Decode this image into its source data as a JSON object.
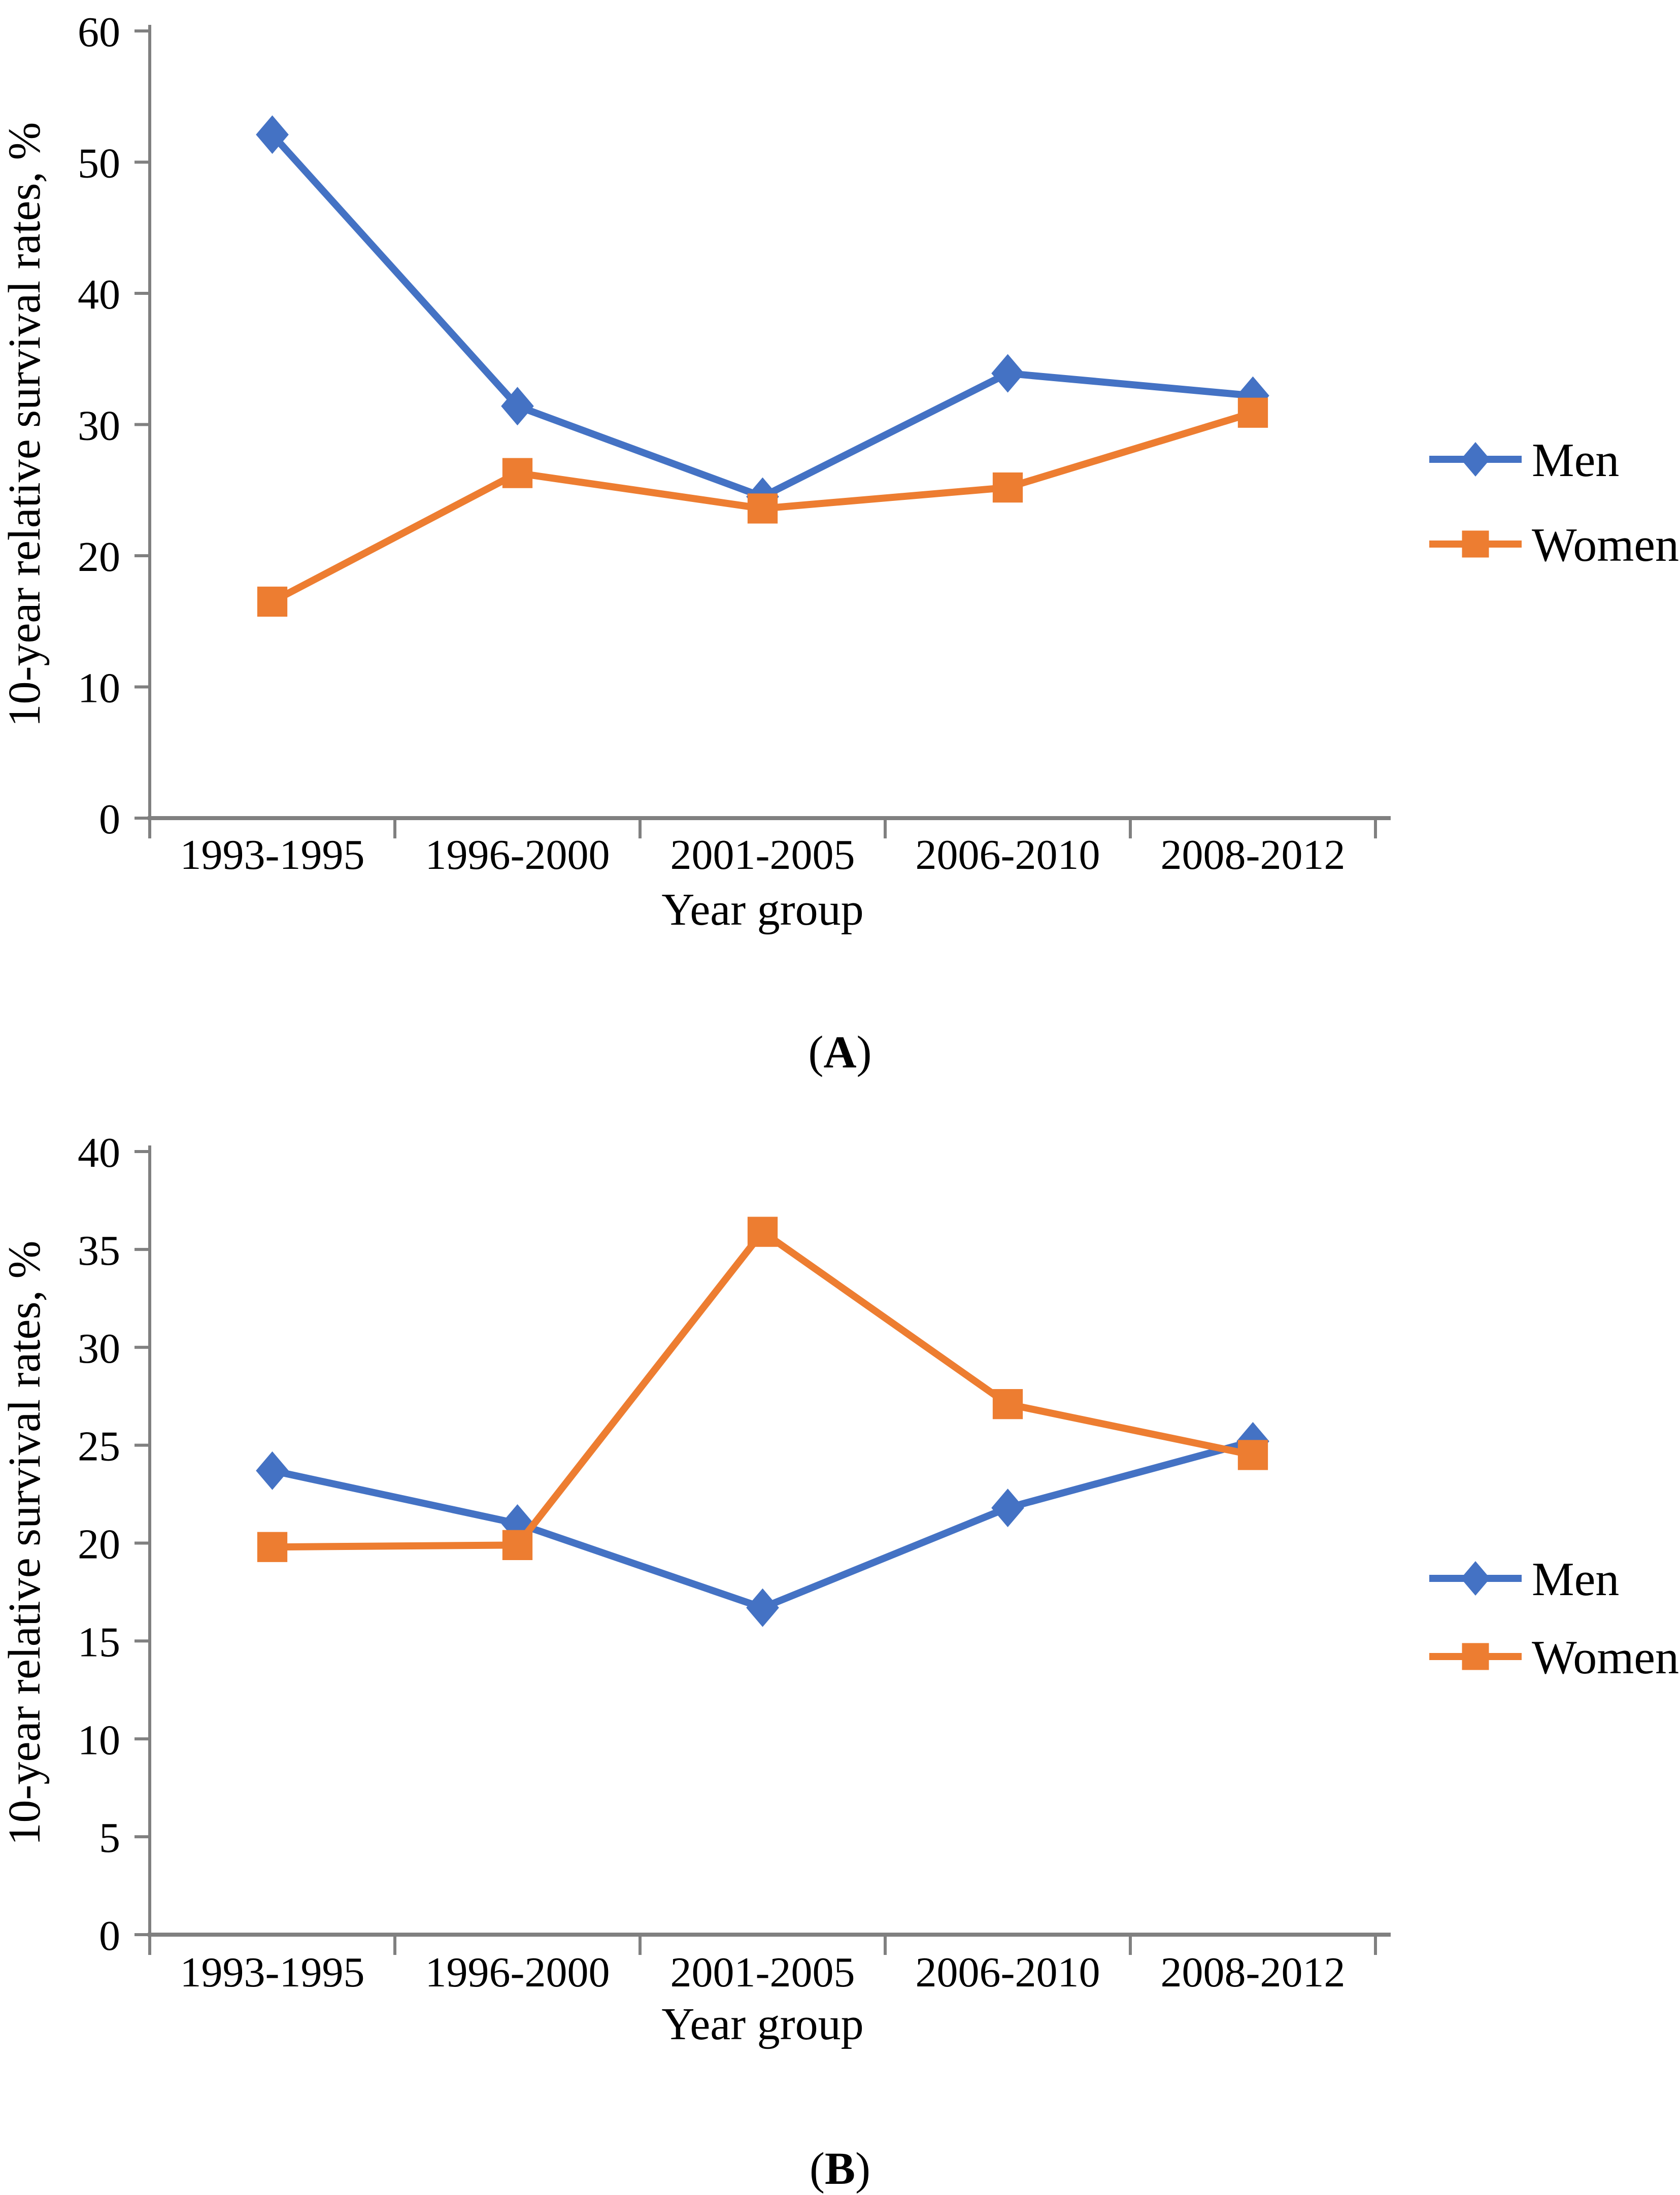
{
  "page": {
    "background": "#ffffff",
    "series_colors": {
      "men": "#4472C4",
      "women": "#ED7D31"
    },
    "axis_color": "#808080",
    "text_color": "#000000"
  },
  "chart_data": [
    {
      "id": "A",
      "type": "line",
      "title": "",
      "xlabel": "Year group",
      "ylabel": "10-year relative survival rates, %",
      "caption": {
        "open": "(",
        "letter": "A",
        "close": ")"
      },
      "categories": [
        "1993-1995",
        "1996-2000",
        "2001-2005",
        "2006-2010",
        "2008-2012"
      ],
      "ylim": [
        0,
        60
      ],
      "yticks": [
        0,
        10,
        20,
        30,
        40,
        50,
        60
      ],
      "grid": false,
      "legend_position": "right",
      "series": [
        {
          "name": "Men",
          "marker": "diamond",
          "color": "#4472C4",
          "values": [
            52.1,
            31.4,
            24.5,
            33.9,
            32.2
          ]
        },
        {
          "name": "Women",
          "marker": "square",
          "color": "#ED7D31",
          "values": [
            16.5,
            26.3,
            23.6,
            25.2,
            30.9
          ]
        }
      ]
    },
    {
      "id": "B",
      "type": "line",
      "title": "",
      "xlabel": "Year group",
      "ylabel": "10-year relative survival rates, %",
      "caption": {
        "open": "(",
        "letter": "B",
        "close": ")"
      },
      "categories": [
        "1993-1995",
        "1996-2000",
        "2001-2005",
        "2006-2010",
        "2008-2012"
      ],
      "ylim": [
        0,
        40
      ],
      "yticks": [
        0,
        5,
        10,
        15,
        20,
        25,
        30,
        35,
        40
      ],
      "grid": false,
      "legend_position": "right",
      "series": [
        {
          "name": "Men",
          "marker": "diamond",
          "color": "#4472C4",
          "values": [
            23.7,
            21.0,
            16.7,
            21.8,
            25.2
          ]
        },
        {
          "name": "Women",
          "marker": "square",
          "color": "#ED7D31",
          "values": [
            19.8,
            19.9,
            35.9,
            27.1,
            24.5
          ]
        }
      ]
    }
  ]
}
